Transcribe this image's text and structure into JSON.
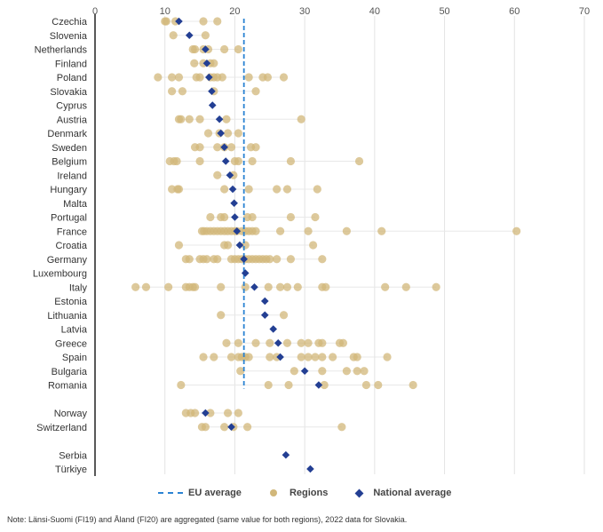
{
  "chart_data": {
    "type": "scatter",
    "orientation": "horizontal-dotplot",
    "xlim": [
      0,
      70
    ],
    "x_ticks": [
      "0",
      "10",
      "20",
      "30",
      "40",
      "50",
      "60",
      "70"
    ],
    "eu_average": 21.3,
    "categories": [
      "Czechia",
      "Slovenia",
      "Netherlands",
      "Finland",
      "Poland",
      "Slovakia",
      "Cyprus",
      "Austria",
      "Denmark",
      "Sweden",
      "Belgium",
      "Ireland",
      "Hungary",
      "Malta",
      "Portugal",
      "France",
      "Croatia",
      "Germany",
      "Luxembourg",
      "Italy",
      "Estonia",
      "Lithuania",
      "Latvia",
      "Greece",
      "Spain",
      "Bulgaria",
      "Romania",
      "",
      "Norway",
      "Switzerland",
      "",
      "Serbia",
      "Türkiye"
    ],
    "series": [
      {
        "name": "Regions",
        "values": [
          [
            10,
            10.2,
            11.5,
            15.5,
            17.5
          ],
          [
            11.2,
            15.8
          ],
          [
            14,
            14.3,
            15.5,
            16.2,
            18.5,
            20.5
          ],
          [
            14.2,
            15.5,
            16.5,
            17
          ],
          [
            9,
            11,
            12,
            14.5,
            15,
            16.5,
            17,
            17.5,
            18.2,
            22,
            24,
            24.7,
            27
          ],
          [
            11,
            12.5,
            17,
            23
          ],
          [],
          [
            12,
            12.3,
            13.5,
            15,
            18.8,
            29.5
          ],
          [
            16.2,
            17.8,
            19,
            20.5
          ],
          [
            14.3,
            15,
            17.5,
            18.5,
            19.5,
            22.3,
            23
          ],
          [
            10.7,
            11.3,
            11.7,
            15,
            20,
            20.5,
            22.5,
            28,
            37.8
          ],
          [
            17.5,
            19.8
          ],
          [
            11,
            11.8,
            12,
            18.5,
            22,
            26,
            27.5,
            31.8
          ],
          [],
          [
            16.5,
            18,
            18.5,
            21.8,
            22.5,
            28,
            31.5
          ],
          [
            15.3,
            15.6,
            16,
            16.5,
            17,
            17.5,
            18,
            18.5,
            19,
            19.5,
            20,
            20.3,
            21,
            21.5,
            22,
            22.5,
            23,
            26.5,
            30.5,
            36,
            41,
            60.3
          ],
          [
            12,
            18.5,
            19,
            21.5,
            31.2
          ],
          [
            13,
            13.5,
            15,
            15.5,
            16,
            17,
            17.5,
            19.5,
            20,
            20.5,
            21,
            21.5,
            22,
            22.5,
            23,
            23.5,
            24,
            24.5,
            25,
            26,
            28,
            32.5
          ],
          [],
          [
            5.8,
            7.3,
            10.5,
            13,
            13.5,
            14,
            14.3,
            18,
            21.5,
            24.8,
            26.5,
            27.5,
            29,
            32.5,
            33,
            41.5,
            44.5,
            48.8
          ],
          [],
          [
            18,
            27
          ],
          [],
          [
            18.8,
            20.5,
            23,
            25,
            27.5,
            29.5,
            30.5,
            32,
            32.5,
            35,
            35.5
          ],
          [
            15.5,
            17,
            19.5,
            20.5,
            21,
            21.5,
            22,
            25,
            26,
            29.5,
            30.5,
            31.5,
            32.5,
            34,
            37,
            37.5,
            41.8
          ],
          [
            20.8,
            28.5,
            32.5,
            36,
            37.5,
            38.5
          ],
          [
            12.3,
            24.8,
            27.7,
            32.8,
            38.8,
            40.5,
            45.5
          ],
          null,
          [
            13,
            13.7,
            14.3,
            16.5,
            19,
            20.5
          ],
          [
            15.3,
            15.8,
            18.5,
            19.8,
            21.8,
            35.3
          ],
          null,
          [],
          []
        ]
      },
      {
        "name": "National average",
        "values": [
          12,
          13.5,
          15.8,
          16,
          16.3,
          16.7,
          16.8,
          17.8,
          18,
          18.5,
          18.7,
          19.3,
          19.7,
          19.9,
          20,
          20.3,
          20.7,
          21.3,
          21.5,
          22.8,
          24.3,
          24.3,
          25.5,
          26.2,
          26.5,
          30,
          32,
          null,
          15.8,
          19.5,
          null,
          27.3,
          30.8
        ]
      }
    ]
  },
  "legend": {
    "eu_average": "EU average",
    "regions": "Regions",
    "national_average": "National average"
  },
  "note": "Note: Länsi-Suomi (FI19) and Åland (FI20) are aggregated (same value for both regions), 2022 data for Slovakia.",
  "colors": {
    "regions": "#d1b77a",
    "national": "#233f93",
    "eu": "#2b83d3"
  }
}
